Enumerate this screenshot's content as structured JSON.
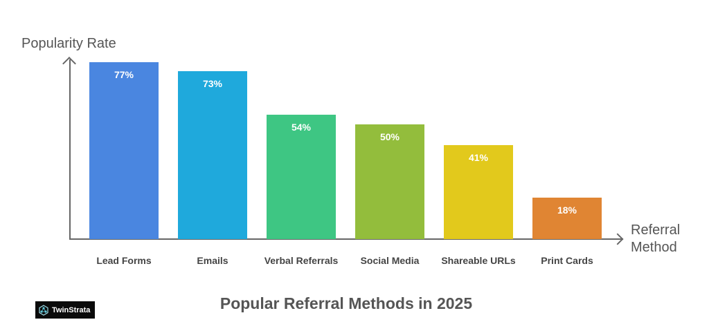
{
  "chart_data": {
    "type": "bar",
    "title": "Popular Referral Methods in 2025",
    "xlabel": "Referral Method",
    "ylabel": "Popularity Rate",
    "categories": [
      "Lead Forms",
      "Emails",
      "Verbal Referrals",
      "Social Media",
      "Shareable URLs",
      "Print Cards"
    ],
    "values": [
      77,
      73,
      54,
      50,
      41,
      18
    ],
    "value_labels": [
      "77%",
      "73%",
      "54%",
      "50%",
      "41%",
      "18%"
    ],
    "colors": [
      "#4a86e0",
      "#1fa9dc",
      "#3ec683",
      "#93bd3c",
      "#e2c91c",
      "#e08533"
    ],
    "ylim": [
      0,
      100
    ],
    "grid": false,
    "legend": "none"
  },
  "labels": {
    "ylabel_line": "Popularity Rate",
    "xlabel_line1": "Referral",
    "xlabel_line2": "Method",
    "title": "Popular Referral Methods in 2025"
  },
  "brand": {
    "name": "TwinStrata"
  }
}
